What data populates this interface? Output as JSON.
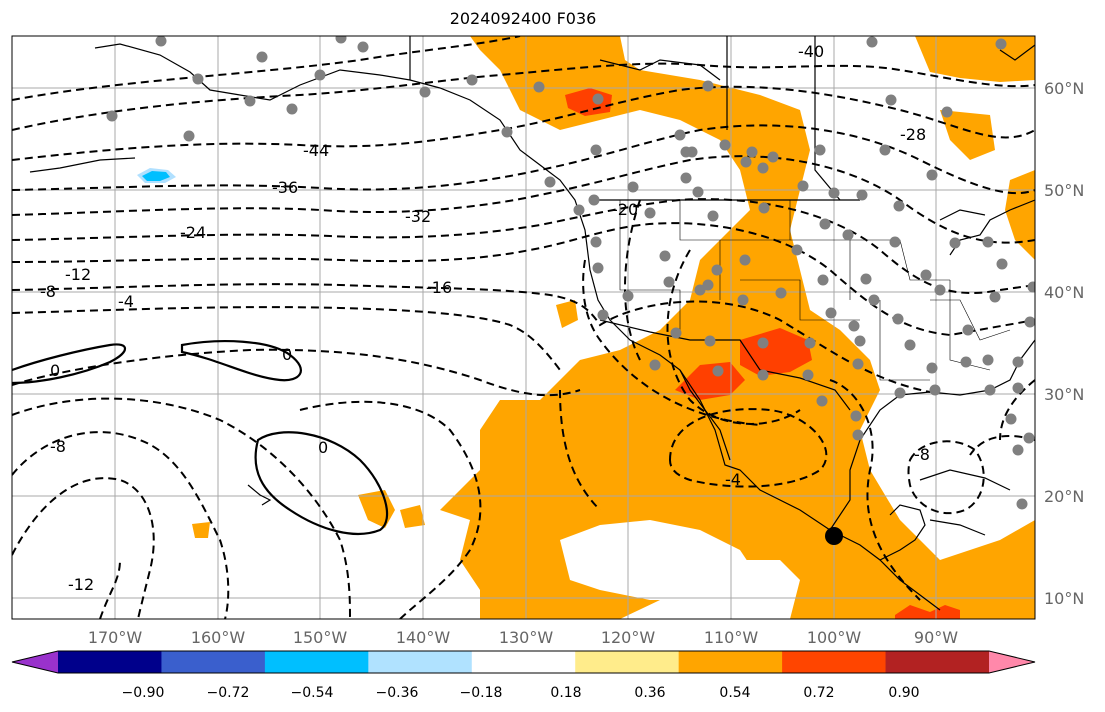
{
  "title": "2024092400 F036",
  "map": {
    "lon_ticks": [
      "170°W",
      "160°W",
      "150°W",
      "140°W",
      "130°W",
      "120°W",
      "110°W",
      "100°W",
      "90°W"
    ],
    "lat_ticks": [
      "60°N",
      "50°N",
      "40°N",
      "30°N",
      "20°N",
      "10°N"
    ],
    "contour_labels": [
      "-40",
      "-44",
      "-36",
      "-32",
      "-28",
      "-24",
      "-20",
      "-16",
      "-12",
      "-8",
      "-4",
      "0",
      "0",
      "0",
      "-8",
      "-12",
      "-4",
      "-8"
    ],
    "shade_colors": {
      "orange": "#ffa500",
      "red_orange": "#ff4000",
      "light_blue": "#b0e0ff",
      "sky_blue": "#00bfff"
    },
    "station_color": "#808080",
    "marker_color": "#000000"
  },
  "colorbar": {
    "colors": [
      "#9932cc",
      "#00008b",
      "#3a5fcd",
      "#00bfff",
      "#b0e2ff",
      "#ffffff",
      "#ffec8b",
      "#ffa500",
      "#ff4500",
      "#b22222",
      "#ff88aa"
    ],
    "ticks": [
      "−0.90",
      "−0.72",
      "−0.54",
      "−0.36",
      "−0.18",
      "0.18",
      "0.36",
      "0.54",
      "0.72",
      "0.90"
    ]
  }
}
